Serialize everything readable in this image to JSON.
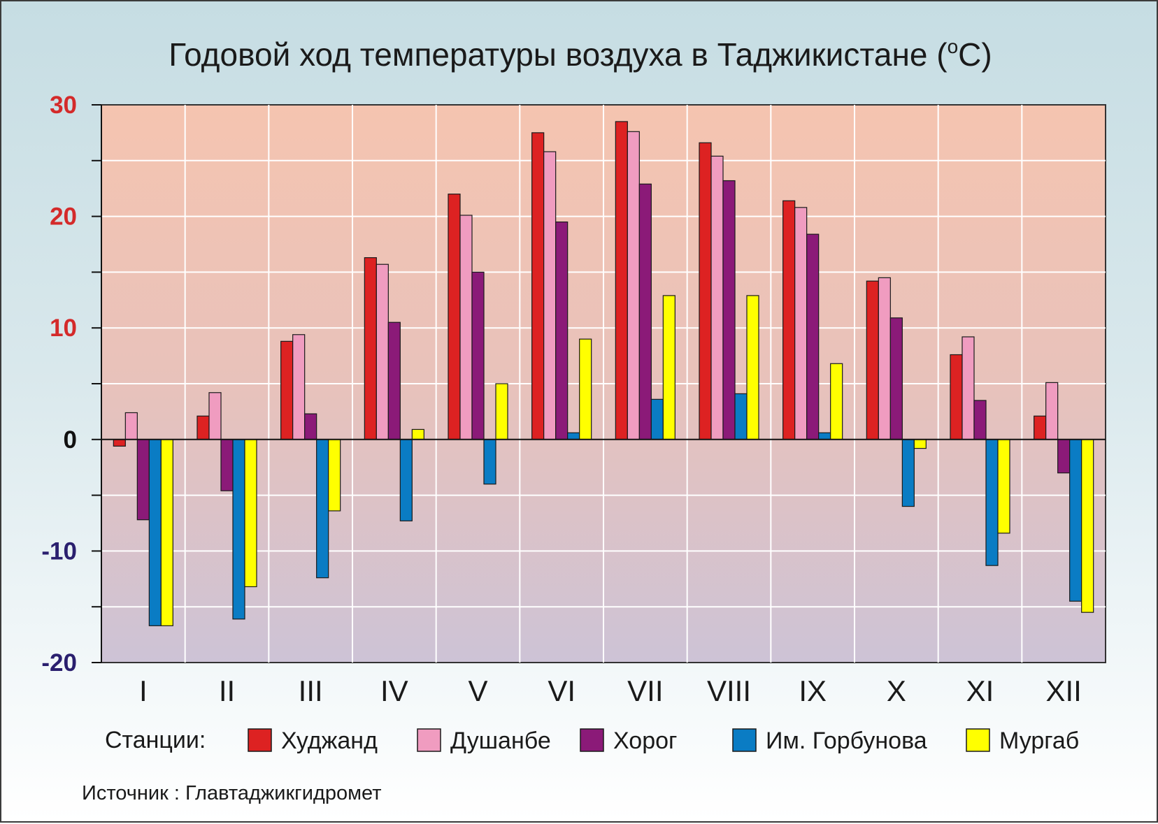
{
  "chart_data": {
    "type": "bar",
    "title": "Годовой ход температуры воздуха в Таджикистане (",
    "title_unit_sup": "o",
    "title_unit": "C)",
    "categories": [
      "I",
      "II",
      "III",
      "IV",
      "V",
      "VI",
      "VII",
      "VIII",
      "IX",
      "X",
      "XI",
      "XII"
    ],
    "series": [
      {
        "name": "Худжанд",
        "color": "#dd2222",
        "values": [
          -0.6,
          2.1,
          8.8,
          16.3,
          22.0,
          27.5,
          28.5,
          26.6,
          21.4,
          14.2,
          7.6,
          2.1
        ]
      },
      {
        "name": "Душанбе",
        "color": "#f09cc0",
        "values": [
          2.4,
          4.2,
          9.4,
          15.7,
          20.1,
          25.8,
          27.6,
          25.4,
          20.8,
          14.5,
          9.2,
          5.1
        ]
      },
      {
        "name": "Хорог",
        "color": "#8b1a78",
        "values": [
          -7.2,
          -4.6,
          2.3,
          10.5,
          15.0,
          19.5,
          22.9,
          23.2,
          18.4,
          10.9,
          3.5,
          -3.0
        ]
      },
      {
        "name": "Им. Горбунова",
        "color": "#0a7cc4",
        "values": [
          -16.7,
          -16.1,
          -12.4,
          -7.3,
          -4.0,
          0.6,
          3.6,
          4.1,
          0.6,
          -6.0,
          -11.3,
          -14.5
        ]
      },
      {
        "name": "Мургаб",
        "color": "#ffff00",
        "values": [
          -16.7,
          -13.2,
          -6.4,
          0.9,
          5.0,
          9.0,
          12.9,
          12.9,
          6.8,
          -0.8,
          -8.4,
          -15.5
        ]
      }
    ],
    "ylim": [
      -20,
      30
    ],
    "yticks": [
      "30",
      "20",
      "10",
      "0",
      "-10",
      "-20"
    ],
    "ytick_colors": {
      "positive": "#d42a2a",
      "zero": "#111111",
      "negative": "#2a1f6e"
    },
    "grid": true,
    "legend_placement": "bottom",
    "legend_title": "Станции:",
    "source": "Источник : Главтаджикгидромет"
  }
}
